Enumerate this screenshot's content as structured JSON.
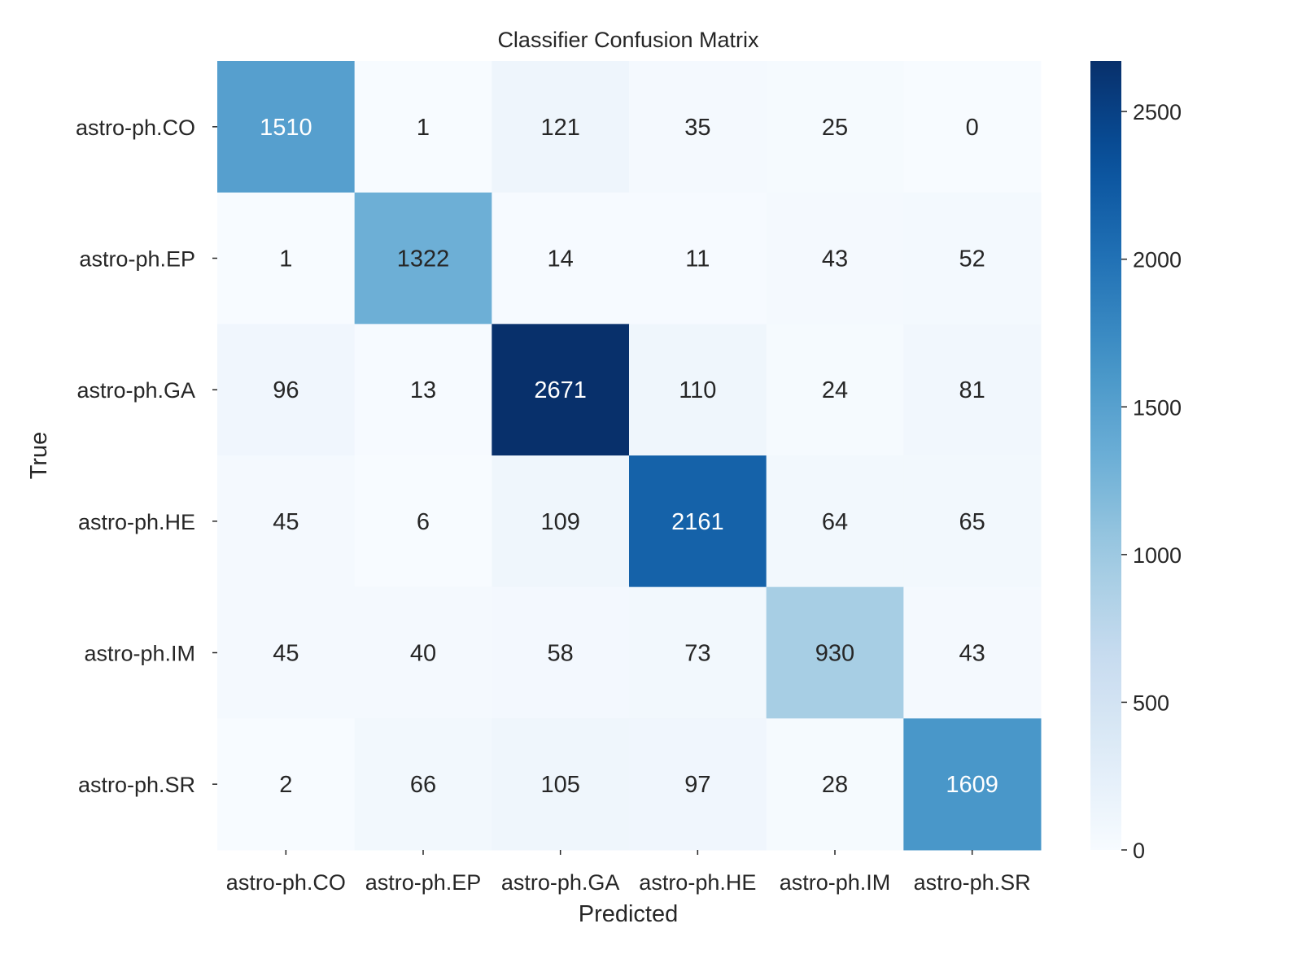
{
  "chart_data": {
    "type": "heatmap",
    "title": "Classifier Confusion Matrix",
    "xlabel": "Predicted",
    "ylabel": "True",
    "x_categories": [
      "astro-ph.CO",
      "astro-ph.EP",
      "astro-ph.GA",
      "astro-ph.HE",
      "astro-ph.IM",
      "astro-ph.SR"
    ],
    "y_categories": [
      "astro-ph.CO",
      "astro-ph.EP",
      "astro-ph.GA",
      "astro-ph.HE",
      "astro-ph.IM",
      "astro-ph.SR"
    ],
    "values": [
      [
        1510,
        1,
        121,
        35,
        25,
        0
      ],
      [
        1,
        1322,
        14,
        11,
        43,
        52
      ],
      [
        96,
        13,
        2671,
        110,
        24,
        81
      ],
      [
        45,
        6,
        109,
        2161,
        64,
        65
      ],
      [
        45,
        40,
        58,
        73,
        930,
        43
      ],
      [
        2,
        66,
        105,
        97,
        28,
        1609
      ]
    ],
    "colormap": "Blues",
    "colorbar": {
      "range": [
        0,
        2671
      ],
      "ticks": [
        0,
        500,
        1000,
        1500,
        2000,
        2500
      ]
    }
  }
}
